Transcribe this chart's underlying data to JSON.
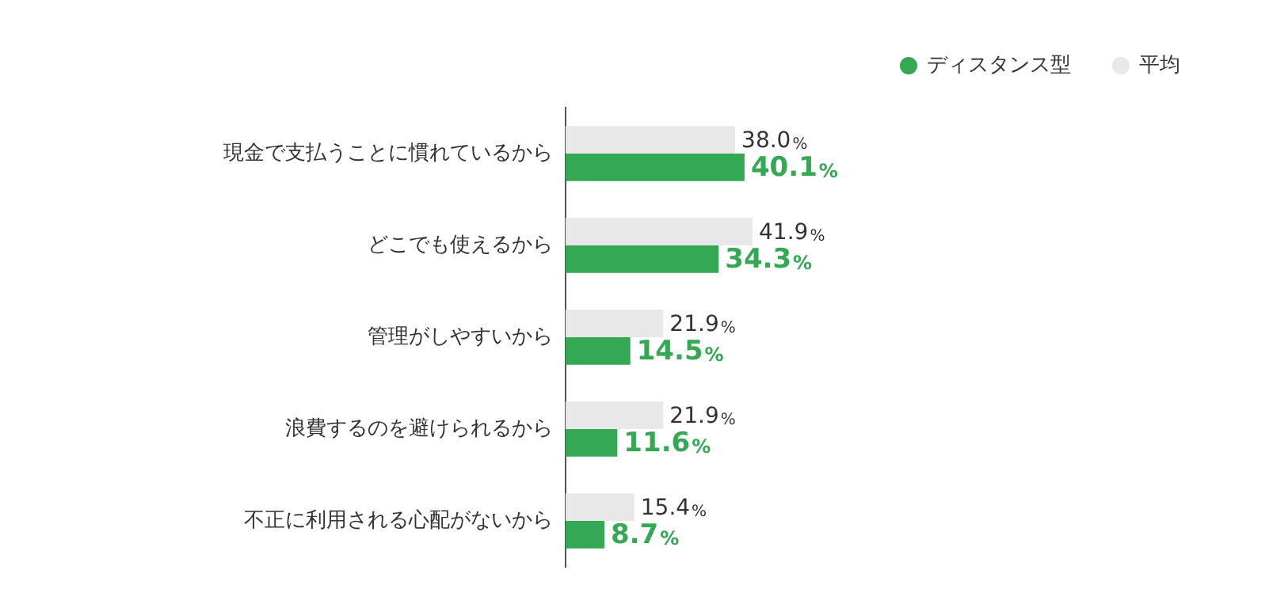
{
  "chart_data": {
    "type": "bar",
    "orientation": "horizontal",
    "categories": [
      "現金で支払うことに慣れているから",
      "どこでも使えるから",
      "管理がしやすいから",
      "浪費するのを避けられるから",
      "不正に利用される心配がないから"
    ],
    "series": [
      {
        "name": "平均",
        "color": "#e8e8e8",
        "values": [
          38.0,
          41.9,
          21.9,
          21.9,
          15.4
        ],
        "value_labels": [
          "38.0%",
          "41.9%",
          "21.9%",
          "21.9%",
          "15.4%"
        ]
      },
      {
        "name": "ディスタンス型",
        "color": "#34a853",
        "values": [
          40.1,
          34.3,
          14.5,
          11.6,
          8.7
        ],
        "value_labels": [
          "40.1%",
          "34.3%",
          "14.5%",
          "11.6%",
          "8.7%"
        ]
      }
    ],
    "legend": "top right",
    "grid": false
  }
}
